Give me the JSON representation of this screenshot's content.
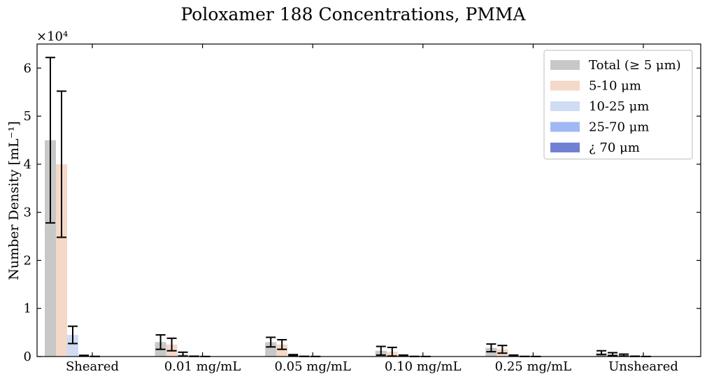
{
  "chart_data": {
    "type": "bar",
    "title": "Poloxamer 188 Concentrations, PMMA",
    "ylabel": "Number Density [mL⁻¹]",
    "xlabel": "",
    "y_multiplier": "×10⁴",
    "ylim": [
      0,
      6.5
    ],
    "yticks": [
      0,
      1,
      2,
      3,
      4,
      5,
      6
    ],
    "legend_position": "top-right",
    "grid": false,
    "categories": [
      "Sheared",
      "0.01 mg/mL",
      "0.05 mg/mL",
      "0.10 mg/mL",
      "0.25 mg/mL",
      "Unsheared"
    ],
    "series": [
      {
        "name": "Total (≥ 5 μm)",
        "color": "#c8c8c8",
        "values": [
          4.5,
          0.3,
          0.3,
          0.12,
          0.18,
          0.08
        ],
        "errors": [
          1.72,
          0.15,
          0.1,
          0.09,
          0.08,
          0.04
        ]
      },
      {
        "name": "5-10 μm",
        "color": "#f4d8c8",
        "values": [
          4.0,
          0.25,
          0.25,
          0.1,
          0.15,
          0.05
        ],
        "errors": [
          1.52,
          0.13,
          0.1,
          0.09,
          0.08,
          0.03
        ]
      },
      {
        "name": "10-25 μm",
        "color": "#cfdcf4",
        "values": [
          0.45,
          0.05,
          0.03,
          0.02,
          0.02,
          0.03
        ],
        "errors": [
          0.18,
          0.04,
          0.01,
          0.01,
          0.01,
          0.02
        ]
      },
      {
        "name": "25-70 μm",
        "color": "#a0b8f4",
        "values": [
          0.02,
          0.005,
          0.003,
          0.002,
          0.002,
          0.005
        ],
        "errors": [
          0.005,
          0.002,
          0.001,
          0.001,
          0.001,
          0.002
        ]
      },
      {
        "name": "¿ 70 μm",
        "color": "#7280d4",
        "values": [
          0.002,
          0.001,
          0.001,
          0.001,
          0.001,
          0.001
        ],
        "errors": [
          0.001,
          0.0005,
          0.0005,
          0.0005,
          0.0005,
          0.0005
        ]
      }
    ]
  }
}
